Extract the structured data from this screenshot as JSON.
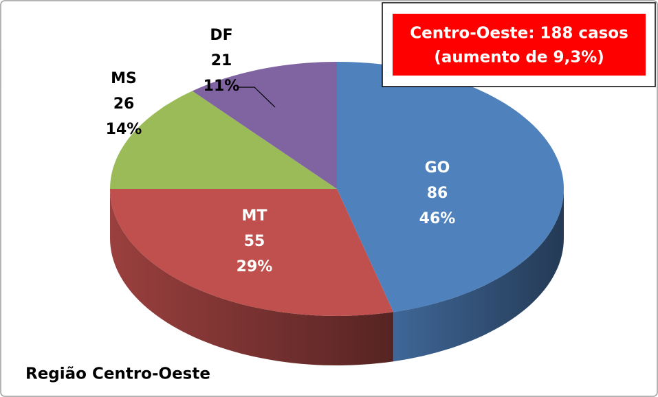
{
  "chart_data": {
    "type": "pie",
    "title": "Região Centro-Oeste",
    "categories": [
      "GO",
      "MT",
      "MS",
      "DF"
    ],
    "values": [
      46,
      29,
      14,
      11
    ],
    "value_labels": [
      "46%",
      "29%",
      "14%",
      "11%"
    ],
    "counts": [
      86,
      55,
      26,
      21
    ],
    "colors": [
      "#4f81bd",
      "#c0504d",
      "#9bbb59",
      "#8064a2"
    ],
    "annotation": [
      "Centro-Oeste: 188 casos",
      "(aumento de 9,3%)"
    ]
  }
}
